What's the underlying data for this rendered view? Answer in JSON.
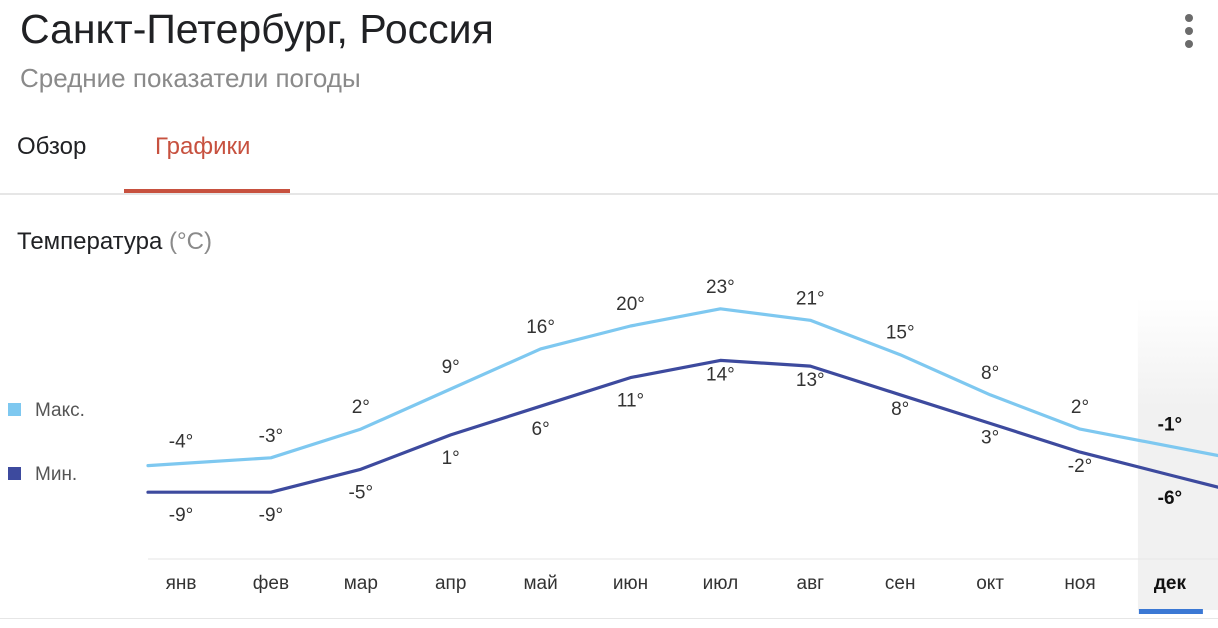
{
  "header": {
    "title": "Санкт-Петербург, Россия",
    "subtitle": "Средние показатели погоды",
    "menu_icon": "more-vert-icon"
  },
  "tabs": [
    {
      "label": "Обзор",
      "active": false
    },
    {
      "label": "Графики",
      "active": true
    }
  ],
  "section": {
    "title": "Температура",
    "unit": "(°C)"
  },
  "colors": {
    "max": "#7ec8f0",
    "min": "#3d4a9e",
    "accent": "#c7513f",
    "selected": "#3b78d4"
  },
  "chart_data": {
    "type": "line",
    "categories": [
      "янв",
      "фев",
      "мар",
      "апр",
      "май",
      "июн",
      "июл",
      "авг",
      "сен",
      "окт",
      "ноя",
      "дек"
    ],
    "series": [
      {
        "name": "Макс.",
        "values": [
          -4,
          -3,
          2,
          9,
          16,
          20,
          23,
          21,
          15,
          8,
          2,
          -1
        ],
        "labels": [
          "-4°",
          "-3°",
          "2°",
          "9°",
          "16°",
          "20°",
          "23°",
          "21°",
          "15°",
          "8°",
          "2°",
          "-1°"
        ]
      },
      {
        "name": "Мин.",
        "values": [
          -9,
          -9,
          -5,
          1,
          6,
          11,
          14,
          13,
          8,
          3,
          -2,
          -6
        ],
        "labels": [
          "-9°",
          "-9°",
          "-5°",
          "1°",
          "6°",
          "11°",
          "14°",
          "13°",
          "8°",
          "3°",
          "-2°",
          "-6°"
        ]
      }
    ],
    "selected_category": "дек",
    "legend": "left",
    "grid": false
  }
}
